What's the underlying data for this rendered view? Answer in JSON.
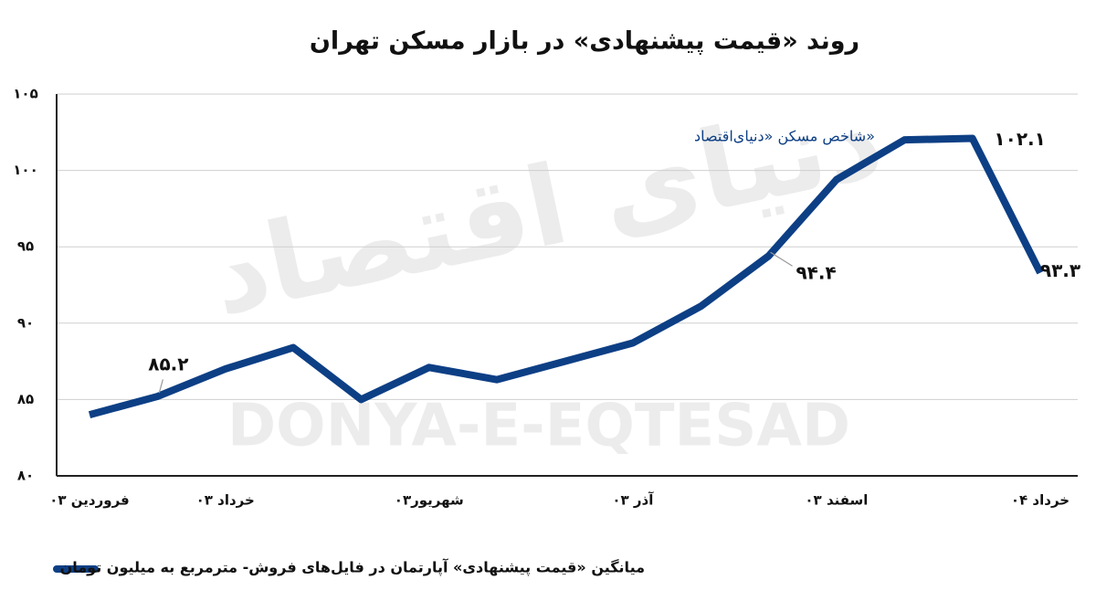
{
  "chart_data": {
    "type": "line",
    "title": "روند «قیمت پیشنهادی» در بازار مسکن تهران",
    "annotation": "شاخص مسکن «دنیای‌اقتصاد»",
    "watermark": "DONYA-E-EQTESAD",
    "watermark_fa": "دنیای اقتصاد",
    "categories": [
      "فروردین ۰۳",
      null,
      "خرداد ۰۳",
      null,
      null,
      "شهریور۰۳",
      null,
      null,
      "آذر ۰۳",
      null,
      null,
      "اسفند ۰۳",
      null,
      null,
      "خرداد ۰۴"
    ],
    "series": [
      {
        "name": "میانگین «قیمت پیشنهادی» آپارتمان در فایل‌های فروش- مترمربع به میلیون تومان",
        "color": "#0d3f85",
        "values": [
          84.0,
          85.2,
          87.0,
          88.4,
          85.0,
          87.1,
          86.3,
          87.5,
          88.7,
          91.1,
          94.4,
          99.4,
          102.0,
          102.1,
          93.3
        ],
        "value_labels": [
          null,
          "۸۵.۲",
          null,
          null,
          null,
          null,
          null,
          null,
          null,
          null,
          "۹۴.۴",
          null,
          null,
          "۱۰۲.۱",
          "۹۳.۳"
        ]
      }
    ],
    "ylim": [
      80,
      105
    ],
    "yticks": [
      {
        "value": 80,
        "label": "۸۰"
      },
      {
        "value": 85,
        "label": "۸۵"
      },
      {
        "value": 90,
        "label": "۹۰"
      },
      {
        "value": 95,
        "label": "۹۵"
      },
      {
        "value": 100,
        "label": "۱۰۰"
      },
      {
        "value": 105,
        "label": "۱۰۵"
      }
    ],
    "grid": true
  }
}
